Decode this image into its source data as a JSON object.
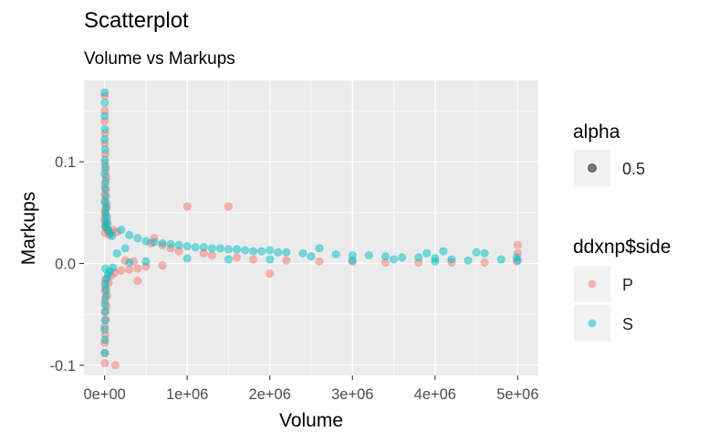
{
  "chart_data": {
    "type": "scatter",
    "title": "Scatterplot",
    "subtitle": "Volume vs Markups",
    "xlabel": "Volume",
    "ylabel": "Markups",
    "xlim": [
      -250000,
      5250000
    ],
    "ylim": [
      -0.11,
      0.18
    ],
    "x_ticks": [
      0,
      1000000,
      2000000,
      3000000,
      4000000,
      5000000
    ],
    "x_tick_labels": [
      "0e+00",
      "1e+06",
      "2e+06",
      "3e+06",
      "4e+06",
      "5e+06"
    ],
    "y_ticks": [
      -0.1,
      0.0,
      0.1
    ],
    "y_tick_labels": [
      "-0.1",
      "0.0",
      "0.1"
    ],
    "grid": true,
    "point_alpha": 0.5,
    "legend": {
      "placement": "right",
      "alpha": {
        "title": "alpha",
        "entries": [
          {
            "label": "0.5"
          }
        ]
      },
      "side": {
        "title": "ddxnp$side",
        "entries": [
          {
            "label": "P",
            "color": "#F8766D"
          },
          {
            "label": "S",
            "color": "#00BFC4"
          }
        ]
      }
    },
    "series": [
      {
        "name": "P",
        "color": "#F8766D",
        "points": [
          [
            2000,
            0.165
          ],
          [
            3000,
            0.15
          ],
          [
            1000,
            0.14
          ],
          [
            5000,
            0.128
          ],
          [
            2000,
            0.118
          ],
          [
            8000,
            0.108
          ],
          [
            3000,
            0.099
          ],
          [
            10000,
            0.092
          ],
          [
            20000,
            0.085
          ],
          [
            5000,
            0.078
          ],
          [
            15000,
            0.072
          ],
          [
            1000,
            0.068
          ],
          [
            4000,
            0.062
          ],
          [
            25000,
            0.058
          ],
          [
            6000,
            0.053
          ],
          [
            12000,
            0.049
          ],
          [
            2000,
            0.045
          ],
          [
            30000,
            0.041
          ],
          [
            8000,
            0.038
          ],
          [
            18000,
            0.035
          ],
          [
            40000,
            0.032
          ],
          [
            6000,
            0.03
          ],
          [
            60000,
            0.028
          ],
          [
            100000,
            0.033
          ],
          [
            150000,
            0.031
          ],
          [
            3000,
            -0.098
          ],
          [
            5000,
            -0.088
          ],
          [
            2000,
            -0.078
          ],
          [
            9000,
            -0.07
          ],
          [
            1000,
            -0.062
          ],
          [
            15000,
            -0.055
          ],
          [
            4000,
            -0.048
          ],
          [
            22000,
            -0.042
          ],
          [
            7000,
            -0.036
          ],
          [
            30000,
            -0.031
          ],
          [
            3000,
            -0.027
          ],
          [
            12000,
            -0.023
          ],
          [
            50000,
            -0.019
          ],
          [
            8000,
            -0.016
          ],
          [
            80000,
            -0.012
          ],
          [
            120000,
            -0.009
          ],
          [
            200000,
            -0.007
          ],
          [
            300000,
            -0.006
          ],
          [
            400000,
            -0.005
          ],
          [
            130000,
            -0.1
          ],
          [
            400000,
            -0.017
          ],
          [
            560000,
            0.02
          ],
          [
            600000,
            0.025
          ],
          [
            700000,
            0.018
          ],
          [
            800000,
            0.015
          ],
          [
            900000,
            0.012
          ],
          [
            1000000,
            0.056
          ],
          [
            1500000,
            0.056
          ],
          [
            1200000,
            0.01
          ],
          [
            1300000,
            0.008
          ],
          [
            1600000,
            0.006
          ],
          [
            2000000,
            -0.01
          ],
          [
            1800000,
            0.004
          ],
          [
            2200000,
            0.003
          ],
          [
            2600000,
            0.002
          ],
          [
            3000000,
            0.002
          ],
          [
            3400000,
            0.001
          ],
          [
            3800000,
            0.001
          ],
          [
            4200000,
            0.001
          ],
          [
            4600000,
            0.001
          ],
          [
            5000000,
            0.018
          ],
          [
            5000000,
            0.01
          ],
          [
            4990000,
            0.002
          ],
          [
            500000,
            -0.003
          ],
          [
            700000,
            -0.002
          ],
          [
            250000,
            0.003
          ],
          [
            350000,
            0.002
          ]
        ]
      },
      {
        "name": "S",
        "color": "#00BFC4",
        "points": [
          [
            1000,
            0.168
          ],
          [
            3000,
            0.158
          ],
          [
            2000,
            0.145
          ],
          [
            5000,
            0.132
          ],
          [
            1000,
            0.122
          ],
          [
            7000,
            0.112
          ],
          [
            4000,
            0.102
          ],
          [
            9000,
            0.095
          ],
          [
            2000,
            0.088
          ],
          [
            13000,
            0.081
          ],
          [
            6000,
            0.074
          ],
          [
            17000,
            0.066
          ],
          [
            3000,
            0.06
          ],
          [
            22000,
            0.055
          ],
          [
            8000,
            0.05
          ],
          [
            28000,
            0.046
          ],
          [
            5000,
            0.042
          ],
          [
            35000,
            0.039
          ],
          [
            11000,
            0.036
          ],
          [
            45000,
            0.033
          ],
          [
            2000,
            -0.088
          ],
          [
            4000,
            -0.075
          ],
          [
            1000,
            -0.065
          ],
          [
            6000,
            -0.056
          ],
          [
            9000,
            -0.047
          ],
          [
            3000,
            -0.04
          ],
          [
            14000,
            -0.033
          ],
          [
            20000,
            -0.026
          ],
          [
            7000,
            -0.02
          ],
          [
            26000,
            -0.015
          ],
          [
            40000,
            -0.011
          ],
          [
            60000,
            -0.008
          ],
          [
            10000,
            -0.005
          ],
          [
            100000,
            -0.004
          ],
          [
            70000,
            0.03
          ],
          [
            90000,
            0.027
          ],
          [
            200000,
            0.033
          ],
          [
            300000,
            0.028
          ],
          [
            400000,
            0.025
          ],
          [
            500000,
            0.022
          ],
          [
            600000,
            0.021
          ],
          [
            700000,
            0.02
          ],
          [
            800000,
            0.019
          ],
          [
            900000,
            0.018
          ],
          [
            1000000,
            0.017
          ],
          [
            1100000,
            0.016
          ],
          [
            1200000,
            0.016
          ],
          [
            1300000,
            0.015
          ],
          [
            1400000,
            0.015
          ],
          [
            1500000,
            0.014
          ],
          [
            1600000,
            0.014
          ],
          [
            1700000,
            0.013
          ],
          [
            1800000,
            0.012
          ],
          [
            1900000,
            0.012
          ],
          [
            2000000,
            0.013
          ],
          [
            2100000,
            0.011
          ],
          [
            2200000,
            0.011
          ],
          [
            2400000,
            0.01
          ],
          [
            2600000,
            0.015
          ],
          [
            2800000,
            0.009
          ],
          [
            3000000,
            0.008
          ],
          [
            3200000,
            0.008
          ],
          [
            3400000,
            0.007
          ],
          [
            3600000,
            0.006
          ],
          [
            3800000,
            0.006
          ],
          [
            4000000,
            0.005
          ],
          [
            4100000,
            0.012
          ],
          [
            4500000,
            0.011
          ],
          [
            4600000,
            0.01
          ],
          [
            4800000,
            0.004
          ],
          [
            4990000,
            0.006
          ],
          [
            5000000,
            0.003
          ],
          [
            4400000,
            0.003
          ],
          [
            4200000,
            0.004
          ],
          [
            3900000,
            0.01
          ],
          [
            2500000,
            0.007
          ],
          [
            1500000,
            0.004
          ],
          [
            500000,
            0.002
          ],
          [
            300000,
            0.001
          ],
          [
            150000,
            0.01
          ],
          [
            250000,
            0.015
          ],
          [
            1000000,
            0.005
          ],
          [
            2000000,
            0.004
          ],
          [
            3000000,
            0.003
          ],
          [
            3500000,
            0.004
          ],
          [
            4000000,
            0.002
          ]
        ]
      }
    ]
  }
}
